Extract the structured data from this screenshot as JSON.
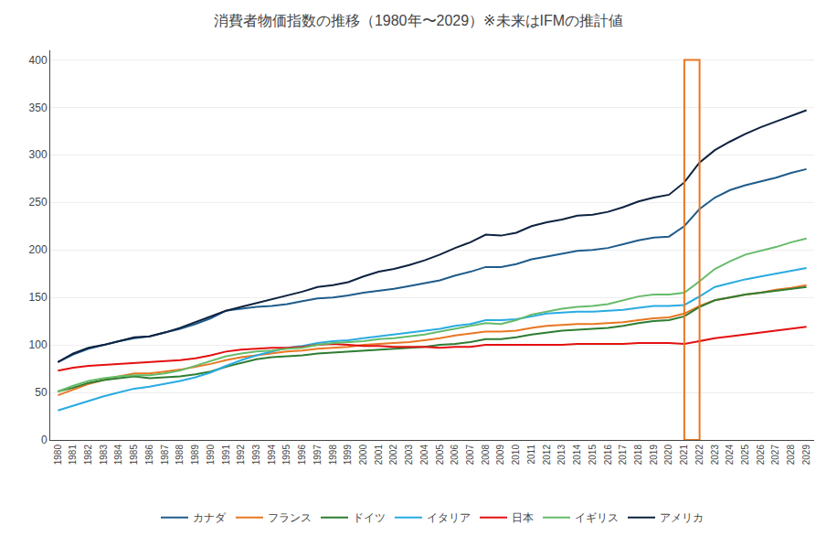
{
  "chart_data": {
    "type": "line",
    "title": "消費者物価指数の推移（1980年〜2029）※未来はIFMの推計値",
    "x": [
      1980,
      1981,
      1982,
      1983,
      1984,
      1985,
      1986,
      1987,
      1988,
      1989,
      1990,
      1991,
      1992,
      1993,
      1994,
      1995,
      1996,
      1997,
      1998,
      1999,
      2000,
      2001,
      2002,
      2003,
      2004,
      2005,
      2006,
      2007,
      2008,
      2009,
      2010,
      2011,
      2012,
      2013,
      2014,
      2015,
      2016,
      2017,
      2018,
      2019,
      2020,
      2021,
      2022,
      2023,
      2024,
      2025,
      2026,
      2027,
      2028,
      2029
    ],
    "series": [
      {
        "name": "カナダ",
        "color": "#1F5C8B",
        "values": [
          82,
          90,
          96,
          100,
          104,
          107,
          109,
          113,
          117,
          122,
          128,
          136,
          138,
          140,
          141,
          143,
          146,
          149,
          150,
          152,
          155,
          157,
          159,
          162,
          165,
          168,
          173,
          177,
          182,
          182,
          185,
          190,
          193,
          196,
          199,
          200,
          202,
          206,
          210,
          213,
          214,
          225,
          243,
          255,
          263,
          268,
          272,
          276,
          281,
          285
        ]
      },
      {
        "name": "フランス",
        "color": "#E87722",
        "values": [
          47,
          53,
          59,
          63,
          67,
          70,
          70,
          72,
          74,
          77,
          80,
          84,
          87,
          89,
          91,
          93,
          94,
          96,
          97,
          98,
          100,
          101,
          102,
          103,
          105,
          107,
          110,
          112,
          114,
          114,
          115,
          118,
          120,
          121,
          122,
          122,
          123,
          124,
          126,
          128,
          129,
          133,
          141,
          147,
          150,
          153,
          155,
          158,
          160,
          163
        ]
      },
      {
        "name": "ドイツ",
        "color": "#2E7D32",
        "values": [
          51,
          55,
          60,
          63,
          65,
          67,
          65,
          66,
          67,
          69,
          72,
          77,
          81,
          85,
          87,
          88,
          89,
          91,
          92,
          93,
          94,
          95,
          96,
          97,
          98,
          100,
          101,
          103,
          106,
          106,
          108,
          111,
          113,
          115,
          116,
          117,
          118,
          120,
          123,
          125,
          126,
          130,
          140,
          147,
          150,
          153,
          155,
          157,
          159,
          161
        ]
      },
      {
        "name": "イタリア",
        "color": "#29ABE2",
        "values": [
          31,
          36,
          41,
          46,
          50,
          54,
          56,
          59,
          62,
          66,
          71,
          78,
          84,
          89,
          93,
          97,
          99,
          102,
          104,
          105,
          107,
          109,
          111,
          113,
          115,
          117,
          120,
          122,
          126,
          126,
          127,
          130,
          133,
          134,
          135,
          135,
          136,
          137,
          139,
          141,
          141,
          142,
          151,
          161,
          165,
          169,
          172,
          175,
          178,
          181
        ]
      },
      {
        "name": "日本",
        "color": "#E31010",
        "values": [
          73,
          76,
          78,
          79,
          80,
          81,
          82,
          83,
          84,
          86,
          89,
          93,
          95,
          96,
          97,
          97,
          98,
          100,
          101,
          100,
          99,
          99,
          98,
          98,
          98,
          97,
          98,
          98,
          100,
          100,
          100,
          100,
          100,
          100,
          101,
          101,
          101,
          101,
          102,
          102,
          102,
          101,
          104,
          107,
          109,
          111,
          113,
          115,
          117,
          119
        ]
      },
      {
        "name": "イギリス",
        "color": "#66BB6A",
        "values": [
          51,
          57,
          62,
          65,
          67,
          68,
          68,
          70,
          73,
          78,
          83,
          88,
          91,
          93,
          94,
          96,
          97,
          100,
          102,
          103,
          104,
          106,
          107,
          109,
          111,
          114,
          117,
          120,
          123,
          122,
          126,
          132,
          135,
          138,
          140,
          141,
          143,
          147,
          151,
          153,
          153,
          155,
          167,
          180,
          188,
          195,
          199,
          203,
          208,
          212
        ]
      },
      {
        "name": "アメリカ",
        "color": "#0D2240",
        "values": [
          82,
          91,
          97,
          100,
          104,
          108,
          109,
          113,
          118,
          124,
          130,
          136,
          140,
          144,
          148,
          152,
          156,
          161,
          163,
          166,
          172,
          177,
          180,
          184,
          189,
          195,
          202,
          208,
          216,
          215,
          218,
          225,
          229,
          232,
          236,
          237,
          240,
          245,
          251,
          255,
          258,
          271,
          292,
          305,
          314,
          322,
          329,
          335,
          341,
          347
        ]
      }
    ],
    "xlim": [
      1979.5,
      2029.5
    ],
    "xticks": [
      1980,
      1981,
      1982,
      1983,
      1984,
      1985,
      1986,
      1987,
      1988,
      1989,
      1990,
      1991,
      1992,
      1993,
      1994,
      1995,
      1996,
      1997,
      1998,
      1999,
      2000,
      2001,
      2002,
      2003,
      2004,
      2005,
      2006,
      2007,
      2008,
      2009,
      2010,
      2011,
      2012,
      2013,
      2014,
      2015,
      2016,
      2017,
      2018,
      2019,
      2020,
      2021,
      2022,
      2023,
      2024,
      2025,
      2026,
      2027,
      2028,
      2029
    ],
    "ylim": [
      0,
      410
    ],
    "yticks": [
      0,
      50,
      100,
      150,
      200,
      250,
      300,
      350,
      400
    ],
    "highlight_x": [
      2021,
      2022
    ],
    "highlight_y": [
      0,
      400
    ],
    "highlight_color": "#E87722",
    "grid": "y",
    "legend": "bottom"
  }
}
